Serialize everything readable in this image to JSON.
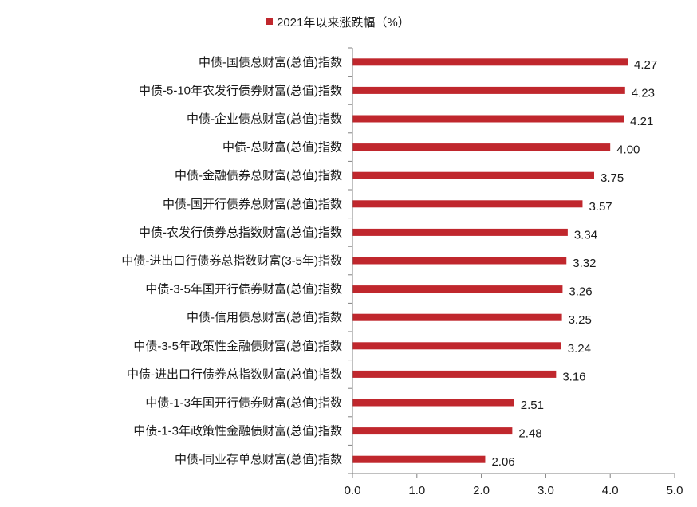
{
  "chart_data": {
    "type": "bar",
    "orientation": "horizontal",
    "categories": [
      "中债-国债总财富(总值)指数",
      "中债-5-10年农发行债券财富(总值)指数",
      "中债-企业债总财富(总值)指数",
      "中债-总财富(总值)指数",
      "中债-金融债券总财富(总值)指数",
      "中债-国开行债券总财富(总值)指数",
      "中债-农发行债券总指数财富(总值)指数",
      "中债-进出口行债券总指数财富(3-5年)指数",
      "中债-3-5年国开行债券财富(总值)指数",
      "中债-信用债总财富(总值)指数",
      "中债-3-5年政策性金融债财富(总值)指数",
      "中债-进出口行债券总指数财富(总值)指数",
      "中债-1-3年国开行债券财富(总值)指数",
      "中债-1-3年政策性金融债财富(总值)指数",
      "中债-同业存单总财富(总值)指数"
    ],
    "series": [
      {
        "name": "2021年以来涨跌幅（%）",
        "values": [
          4.27,
          4.23,
          4.21,
          4.0,
          3.75,
          3.57,
          3.34,
          3.32,
          3.26,
          3.25,
          3.24,
          3.16,
          2.51,
          2.48,
          2.06
        ],
        "labels": [
          "4.27",
          "4.23",
          "4.21",
          "4.00",
          "3.75",
          "3.57",
          "3.34",
          "3.32",
          "3.26",
          "3.25",
          "3.24",
          "3.16",
          "2.51",
          "2.48",
          "2.06"
        ]
      }
    ],
    "xlim": [
      0,
      5
    ],
    "xticks": [
      "0.0",
      "1.0",
      "2.0",
      "3.0",
      "4.0",
      "5.0"
    ],
    "legend_position": "top",
    "grid": false,
    "bar_color": "#c0272d"
  }
}
